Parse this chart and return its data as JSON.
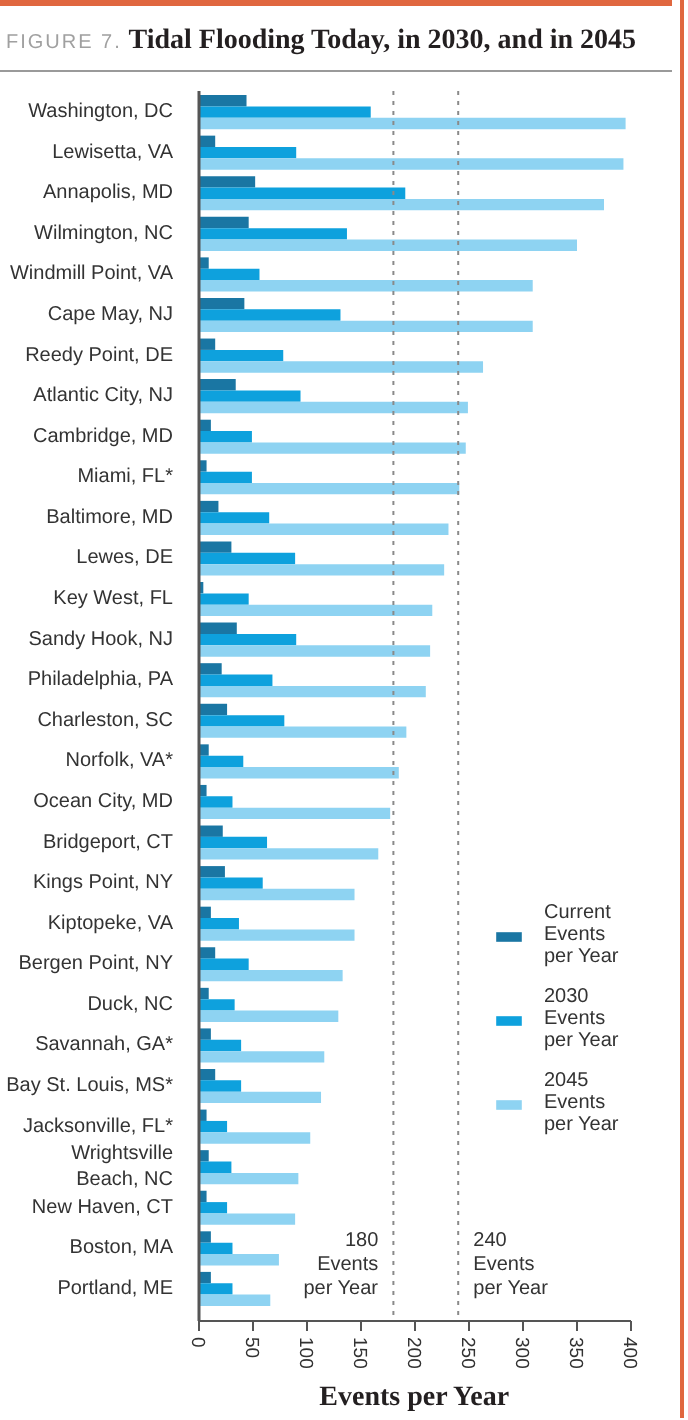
{
  "chart_data": {
    "type": "bar",
    "orientation": "horizontal",
    "title": "Tidal Flooding Today, in 2030, and in 2045",
    "annotations": [
      "FIGURE 7."
    ],
    "xlabel": "Events per Year",
    "categories": [
      "Washington, DC",
      "Lewisetta, VA",
      "Annapolis, MD",
      "Wilmington, NC",
      "Windmill Point, VA",
      "Cape May, NJ",
      "Reedy Point, DE",
      "Atlantic City, NJ",
      "Cambridge, MD",
      "Miami, FL*",
      "Baltimore, MD",
      "Lewes, DE",
      "Key West, FL",
      "Sandy Hook, NJ",
      "Philadelphia, PA",
      "Charleston, SC",
      "Norfolk, VA*",
      "Ocean City, MD",
      "Bridgeport, CT",
      "Kings Point, NY",
      "Kiptopeke, VA",
      "Bergen Point, NY",
      "Duck, NC",
      "Savannah, GA*",
      "Bay St. Louis, MS*",
      "Jacksonville, FL*",
      "Wrightsville Beach, NC",
      "New Haven, CT",
      "Boston, MA",
      "Portland, ME"
    ],
    "series": [
      {
        "name": "Current Events per Year",
        "color": "#1a76a3",
        "values": [
          44,
          15,
          52,
          46,
          9,
          42,
          15,
          34,
          11,
          7,
          18,
          30,
          4,
          35,
          21,
          26,
          9,
          7,
          22,
          24,
          11,
          15,
          9,
          11,
          15,
          7,
          9,
          7,
          11,
          11
        ]
      },
      {
        "name": "2030 Events per Year",
        "color": "#0ea1dd",
        "values": [
          159,
          90,
          191,
          137,
          56,
          131,
          78,
          94,
          49,
          49,
          65,
          89,
          46,
          90,
          68,
          79,
          41,
          31,
          63,
          59,
          37,
          46,
          33,
          39,
          39,
          26,
          30,
          26,
          31,
          31
        ]
      },
      {
        "name": "2045 Events per Year",
        "color": "#8ed3f2",
        "values": [
          395,
          393,
          375,
          350,
          309,
          309,
          263,
          249,
          247,
          241,
          231,
          227,
          216,
          214,
          210,
          192,
          185,
          177,
          166,
          144,
          144,
          133,
          129,
          116,
          113,
          103,
          92,
          89,
          74,
          66
        ]
      }
    ],
    "xlim": [
      0,
      400
    ],
    "xticks": [
      0,
      50,
      100,
      150,
      200,
      250,
      300,
      350,
      400
    ],
    "ref_lines": [
      {
        "axis": "x",
        "value": 180,
        "label": "180 Events per Year",
        "color": "#8a8a8a",
        "line_style": "dashed"
      },
      {
        "axis": "x",
        "value": 240,
        "label": "240 Events per Year",
        "color": "#8a8a8a",
        "line_style": "dashed"
      }
    ],
    "legend": "right"
  }
}
